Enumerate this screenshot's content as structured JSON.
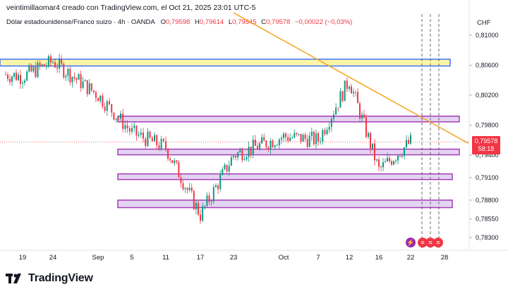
{
  "header": {
    "text": "veintimillaomar4 creado con TradingView.com, el Oct 21, 2025 23:01 UTC-5"
  },
  "symbol": {
    "name": "Dólar estadounidense/Franco suizo · 4h · OANDA",
    "open_label": "O",
    "open": "0,79598",
    "high_label": "H",
    "high": "0,79614",
    "low_label": "L",
    "low": "0,79545",
    "close_label": "C",
    "close": "0,79578",
    "change": "−0,00022 (−0,03%)"
  },
  "price_axis": {
    "currency": "CHF",
    "ticks": [
      "0,81000",
      "0,80600",
      "0,80200",
      "0,79800",
      "0,79400",
      "0,79100",
      "0,78800",
      "0,78550",
      "0,78300"
    ]
  },
  "time_axis": {
    "ticks": [
      "19",
      "24",
      "Sep",
      "5",
      "11",
      "17",
      "23",
      "Oct",
      "7",
      "12",
      "16",
      "22",
      "28"
    ]
  },
  "current_price": {
    "value": "0,79578",
    "countdown": "58:18",
    "color": "#f23645"
  },
  "colors": {
    "up": "#089981",
    "down": "#f23645",
    "trendline": "#f7a21b",
    "zone_fill": "#e1d0f0",
    "zone_border": "#9c27b0",
    "resistance_fill": "#fff59d",
    "resistance_border": "#2962ff"
  },
  "event_icons": [
    "lightning-icon",
    "us-flag-icon",
    "us-flag-icon",
    "us-flag-icon"
  ],
  "brand": {
    "name": "TradingView"
  },
  "chart_data": {
    "type": "candlestick",
    "symbol": "USDCHF",
    "timeframe": "4h",
    "price_unit": "CHF",
    "ylim": [
      0.782,
      0.8125
    ],
    "session_anchors": [
      {
        "date": "19",
        "price": 0.8045
      },
      {
        "date": "24",
        "price": 0.8065
      },
      {
        "date": "Sep",
        "price": 0.802
      },
      {
        "date": "5",
        "price": 0.797
      },
      {
        "date": "11",
        "price": 0.795
      },
      {
        "date": "17",
        "price": 0.786
      },
      {
        "date": "23",
        "price": 0.794
      },
      {
        "date": "Oct",
        "price": 0.7965
      },
      {
        "date": "7",
        "price": 0.796
      },
      {
        "date": "12",
        "price": 0.804
      },
      {
        "date": "16",
        "price": 0.792
      },
      {
        "date": "22",
        "price": 0.79578
      }
    ],
    "horizontal_zones": [
      {
        "kind": "resistance",
        "low": 0.8059,
        "high": 0.8068
      },
      {
        "kind": "zone",
        "low": 0.7985,
        "high": 0.7992
      },
      {
        "kind": "zone",
        "low": 0.7941,
        "high": 0.7948
      },
      {
        "kind": "zone",
        "low": 0.791,
        "high": 0.7915
      },
      {
        "kind": "zone",
        "low": 0.787,
        "high": 0.788
      }
    ],
    "trendline": {
      "from": {
        "date": "23",
        "price": 0.813
      },
      "to": {
        "date": "28",
        "price": 0.7967
      }
    },
    "last_close": 0.79578
  }
}
